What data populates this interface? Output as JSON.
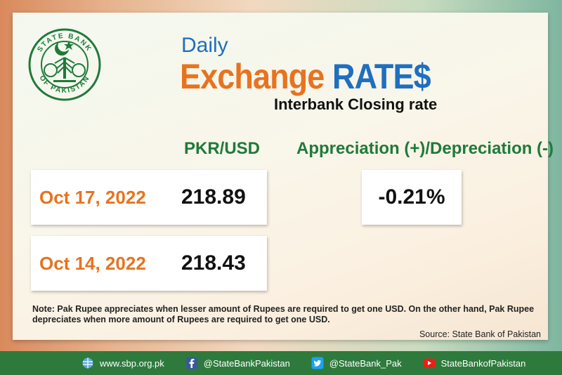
{
  "logo": {
    "top_text": "STATE BANK",
    "bottom_text": "OF PAKISTAN"
  },
  "title": {
    "daily": "Daily",
    "exchange": "Exchange",
    "rates": "RATE$",
    "subtitle": "Interbank Closing rate"
  },
  "headers": {
    "pair": "PKR/USD",
    "change": "Appreciation (+)/Depreciation (-)"
  },
  "rows": [
    {
      "date": "Oct 17, 2022",
      "rate": "218.89"
    },
    {
      "date": "Oct 14, 2022",
      "rate": "218.43"
    }
  ],
  "change_value": "-0.21%",
  "note": "Note: Pak Rupee appreciates when lesser amount of Rupees are required to get one USD.  On the other hand, Pak Rupee depreciates when more amount of Rupees are required to get one USD.",
  "source": "Source: State Bank of Pakistan",
  "footer": {
    "website": "www.sbp.org.pk",
    "facebook": "@StateBankPakistan",
    "twitter": "@StateBank_Pak",
    "youtube": "StateBankofPakistan"
  },
  "colors": {
    "orange": "#e8731f",
    "blue": "#1f6fbf",
    "green": "#1f7a3a",
    "footer": "#2e7a3c"
  }
}
